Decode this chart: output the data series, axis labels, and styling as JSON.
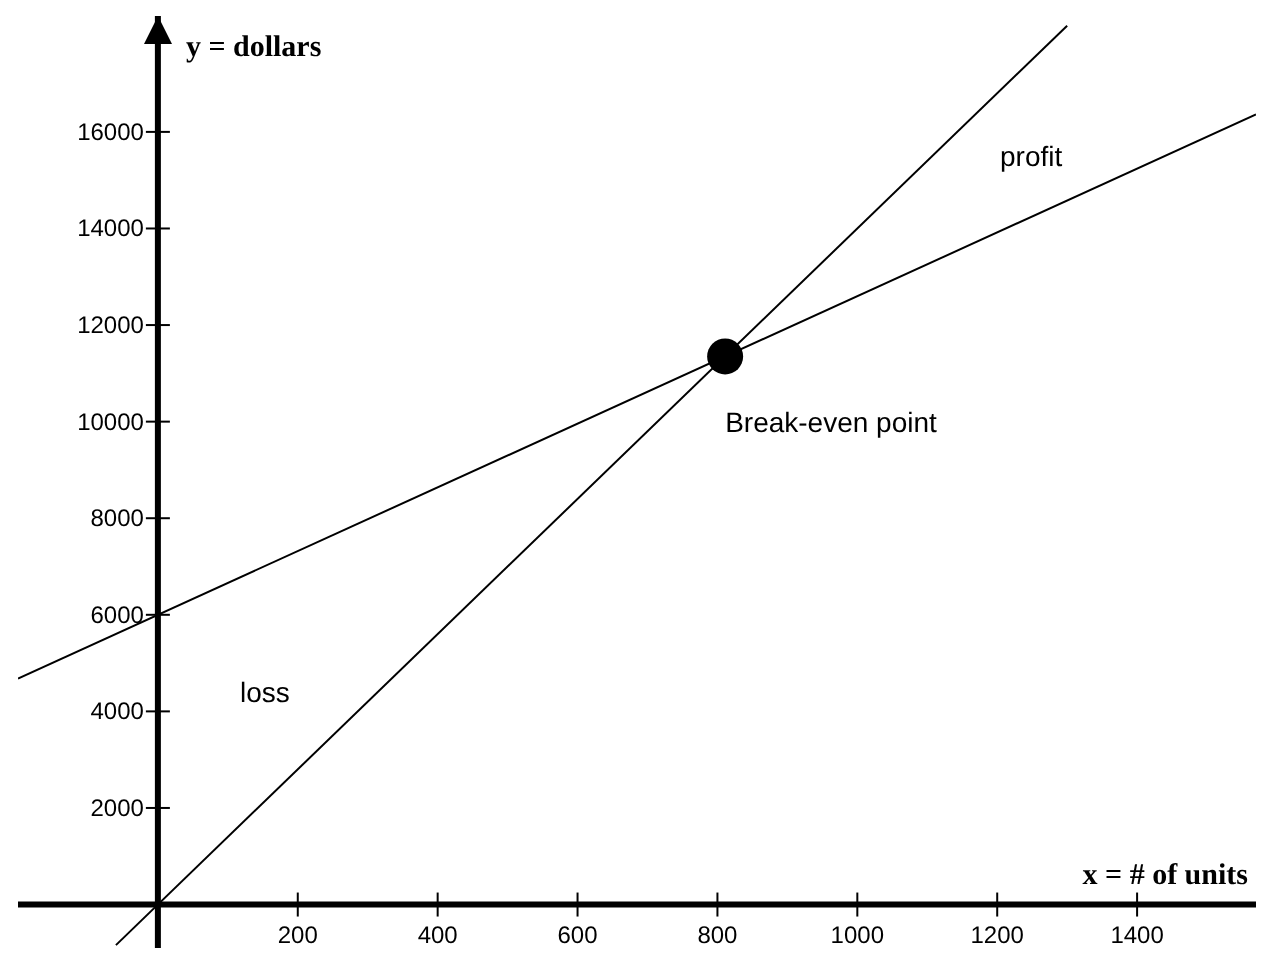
{
  "chart_data": {
    "type": "line",
    "xlabel": "x = # of units",
    "ylabel": "y = dollars",
    "xlim": [
      -200,
      1570
    ],
    "ylim": [
      -900,
      18400
    ],
    "xticks": [
      200,
      400,
      600,
      800,
      1000,
      1200,
      1400
    ],
    "yticks": [
      2000,
      4000,
      6000,
      8000,
      10000,
      12000,
      14000,
      16000
    ],
    "marker": "none",
    "series": [
      {
        "color": "#000000",
        "x": [
          -200,
          1570
        ],
        "values": [
          4680,
          16360
        ]
      },
      {
        "color": "#000000",
        "x": [
          -60,
          1300
        ],
        "values": [
          -840,
          18200
        ]
      },
      {
        "type": "scatter",
        "color": "#000000",
        "x": [
          811
        ],
        "values": [
          11350
        ],
        "marker": "circle"
      }
    ],
    "annotations": [
      {
        "text": "Break-even point",
        "x": 811,
        "y": 11350
      },
      "profit",
      "loss"
    ]
  }
}
